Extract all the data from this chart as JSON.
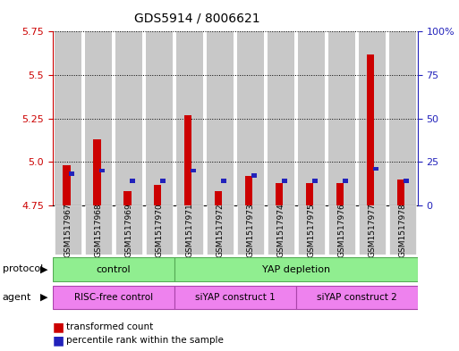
{
  "title": "GDS5914 / 8006621",
  "samples": [
    "GSM1517967",
    "GSM1517968",
    "GSM1517969",
    "GSM1517970",
    "GSM1517971",
    "GSM1517972",
    "GSM1517973",
    "GSM1517974",
    "GSM1517975",
    "GSM1517976",
    "GSM1517977",
    "GSM1517978"
  ],
  "red_values": [
    4.98,
    5.13,
    4.83,
    4.87,
    5.27,
    4.83,
    4.92,
    4.88,
    4.88,
    4.88,
    5.62,
    4.9
  ],
  "blue_levels": [
    0.18,
    0.2,
    0.14,
    0.14,
    0.2,
    0.14,
    0.17,
    0.14,
    0.14,
    0.14,
    0.21,
    0.14
  ],
  "ymin": 4.75,
  "ymax": 5.75,
  "yticks_left": [
    4.75,
    5.0,
    5.25,
    5.5,
    5.75
  ],
  "yticks_right": [
    0,
    25,
    50,
    75,
    100
  ],
  "protocol_labels": [
    "control",
    "YAP depletion"
  ],
  "agent_labels": [
    "RISC-free control",
    "siYAP construct 1",
    "siYAP construct 2"
  ],
  "protocol_color": "#90EE90",
  "agent_color": "#EE82EE",
  "red_color": "#CC0000",
  "blue_color": "#2222BB",
  "bg_color": "#C8C8C8",
  "left_axis_color": "#CC0000",
  "right_axis_color": "#2222BB"
}
